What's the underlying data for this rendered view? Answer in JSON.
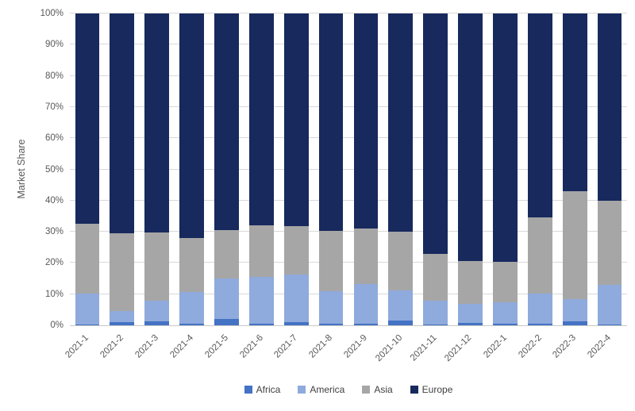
{
  "chart_data": {
    "type": "bar",
    "stacked": true,
    "title": "",
    "xlabel": "",
    "ylabel": "Market Share",
    "ylim": [
      0,
      100
    ],
    "ytick_step": 10,
    "ytick_suffix": "%",
    "grid": true,
    "legend_position": "bottom",
    "categories": [
      "2021-1",
      "2021-2",
      "2021-3",
      "2021-4",
      "2021-5",
      "2021-6",
      "2021-7",
      "2021-8",
      "2021-9",
      "2021-10",
      "2021-11",
      "2021-12",
      "2022-1",
      "2022-2",
      "2022-3",
      "2022-4"
    ],
    "series": [
      {
        "name": "Africa",
        "color": "#4472C4",
        "values": [
          0.2,
          0.9,
          1.3,
          0.6,
          2.0,
          0.6,
          1.0,
          0.5,
          0.4,
          1.5,
          0.2,
          0.7,
          0.6,
          0.4,
          1.2,
          0.2
        ]
      },
      {
        "name": "America",
        "color": "#8FAADC",
        "values": [
          10.0,
          3.6,
          6.7,
          10.2,
          13.0,
          15.0,
          15.3,
          10.4,
          12.9,
          9.8,
          7.6,
          6.1,
          6.7,
          9.9,
          7.3,
          12.7
        ]
      },
      {
        "name": "Asia",
        "color": "#A6A6A6",
        "values": [
          22.4,
          24.9,
          21.7,
          17.3,
          15.6,
          16.4,
          15.5,
          19.3,
          17.7,
          18.7,
          15.2,
          13.7,
          13.0,
          24.2,
          34.5,
          27.1
        ]
      },
      {
        "name": "Europe",
        "color": "#17295D",
        "values": [
          67.4,
          70.6,
          70.3,
          71.9,
          69.4,
          68.0,
          68.2,
          69.8,
          69.0,
          70.0,
          77.0,
          79.5,
          79.7,
          65.5,
          57.0,
          60.0
        ]
      }
    ],
    "colors": {
      "gridline": "#D9D9D9",
      "axis_line": "#C9C9C9",
      "tick_text": "#595959",
      "legend_text": "#404040",
      "background": "#FFFFFF"
    }
  }
}
